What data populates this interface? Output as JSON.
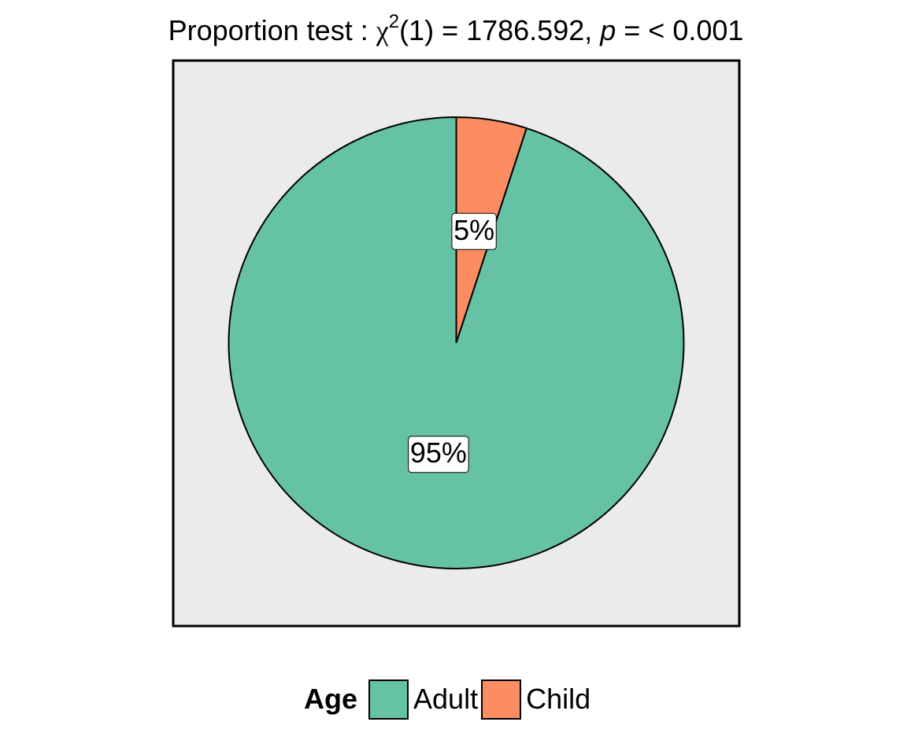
{
  "chart_data": {
    "type": "pie",
    "title": {
      "prefix": "Proportion test : ",
      "chi_symbol": "χ",
      "superscript": "2",
      "df_part": "(1) = 1786.592, ",
      "p_symbol": "p",
      "p_part": " = < 0.001"
    },
    "categories": [
      "Adult",
      "Child"
    ],
    "values": [
      95,
      5
    ],
    "labels": [
      "95%",
      "5%"
    ],
    "colors": [
      "#66C2A5",
      "#FC8D62"
    ],
    "panel_background": "#EBEBEB",
    "legend": {
      "title": "Age",
      "placement": "bottom",
      "items": [
        {
          "label": "Adult",
          "color": "#66C2A5"
        },
        {
          "label": "Child",
          "color": "#FC8D62"
        }
      ]
    }
  }
}
